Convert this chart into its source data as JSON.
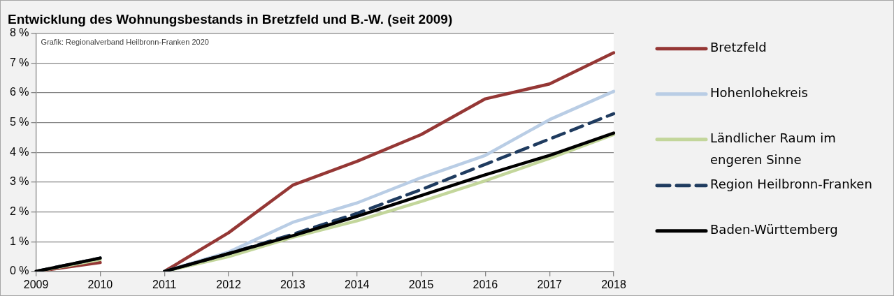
{
  "chart_data": {
    "type": "line",
    "title": "Entwicklung des Wohnungsbestands in Bretzfeld und B.-W. (seit 2009)",
    "categories": [
      "2009",
      "2010",
      "2011",
      "2012",
      "2013",
      "2014",
      "2015",
      "2016",
      "2017",
      "2018"
    ],
    "ylim": [
      0,
      8
    ],
    "yticks": [
      {
        "value": 0,
        "label": "0 %"
      },
      {
        "value": 1,
        "label": "1 %"
      },
      {
        "value": 2,
        "label": "2 %"
      },
      {
        "value": 3,
        "label": "3 %"
      },
      {
        "value": 4,
        "label": "4 %"
      },
      {
        "value": 5,
        "label": "5 %"
      },
      {
        "value": 6,
        "label": "6 %"
      },
      {
        "value": 7,
        "label": "7 %"
      },
      {
        "value": 8,
        "label": "8 %"
      }
    ],
    "grid": "y",
    "legend": "right",
    "marker": "none",
    "annotations": [
      "Grafik: Regionalverband Heilbronn-Franken 2020"
    ],
    "series": [
      {
        "name": "Bretzfeld",
        "color": "#953735",
        "line_style": "solid",
        "values": [
          null,
          null,
          0,
          1.3,
          2.9,
          3.7,
          4.6,
          5.8,
          6.3,
          7.35
        ]
      },
      {
        "name": "Hohenlohekreis",
        "color": "#b9cde5",
        "line_style": "solid",
        "values": [
          null,
          null,
          0,
          0.65,
          1.65,
          2.3,
          3.15,
          3.9,
          5.1,
          6.05
        ]
      },
      {
        "name": "Ländlicher Raum im engeren Sinne",
        "color": "#c3d69b",
        "line_style": "solid",
        "values": [
          null,
          null,
          0,
          0.5,
          1.15,
          1.7,
          2.35,
          3.05,
          3.8,
          4.6
        ]
      },
      {
        "name": "Region Heilbronn-Franken",
        "color": "#1f3b5f",
        "line_style": "dashed",
        "values": [
          null,
          null,
          0,
          0.6,
          1.25,
          1.95,
          2.75,
          3.6,
          4.45,
          5.3
        ]
      },
      {
        "name": "Baden-Württemberg",
        "color": "#000000",
        "line_style": "solid",
        "values": [
          null,
          null,
          0,
          0.6,
          1.2,
          1.85,
          2.55,
          3.25,
          3.9,
          4.65
        ]
      },
      {
        "color": "#953735",
        "line_style": "solid",
        "values": [
          0,
          0.3,
          null,
          null,
          null,
          null,
          null,
          null,
          null,
          null
        ]
      },
      {
        "color": "#c3d69b",
        "line_style": "solid",
        "values": [
          0,
          0.4,
          null,
          null,
          null,
          null,
          null,
          null,
          null,
          null
        ]
      },
      {
        "color": "#1f3b5f",
        "line_style": "dashed",
        "values": [
          0,
          0.45,
          null,
          null,
          null,
          null,
          null,
          null,
          null,
          null
        ]
      },
      {
        "color": "#000000",
        "line_style": "solid",
        "values": [
          0,
          0.45,
          null,
          null,
          null,
          null,
          null,
          null,
          null,
          null
        ]
      }
    ]
  }
}
